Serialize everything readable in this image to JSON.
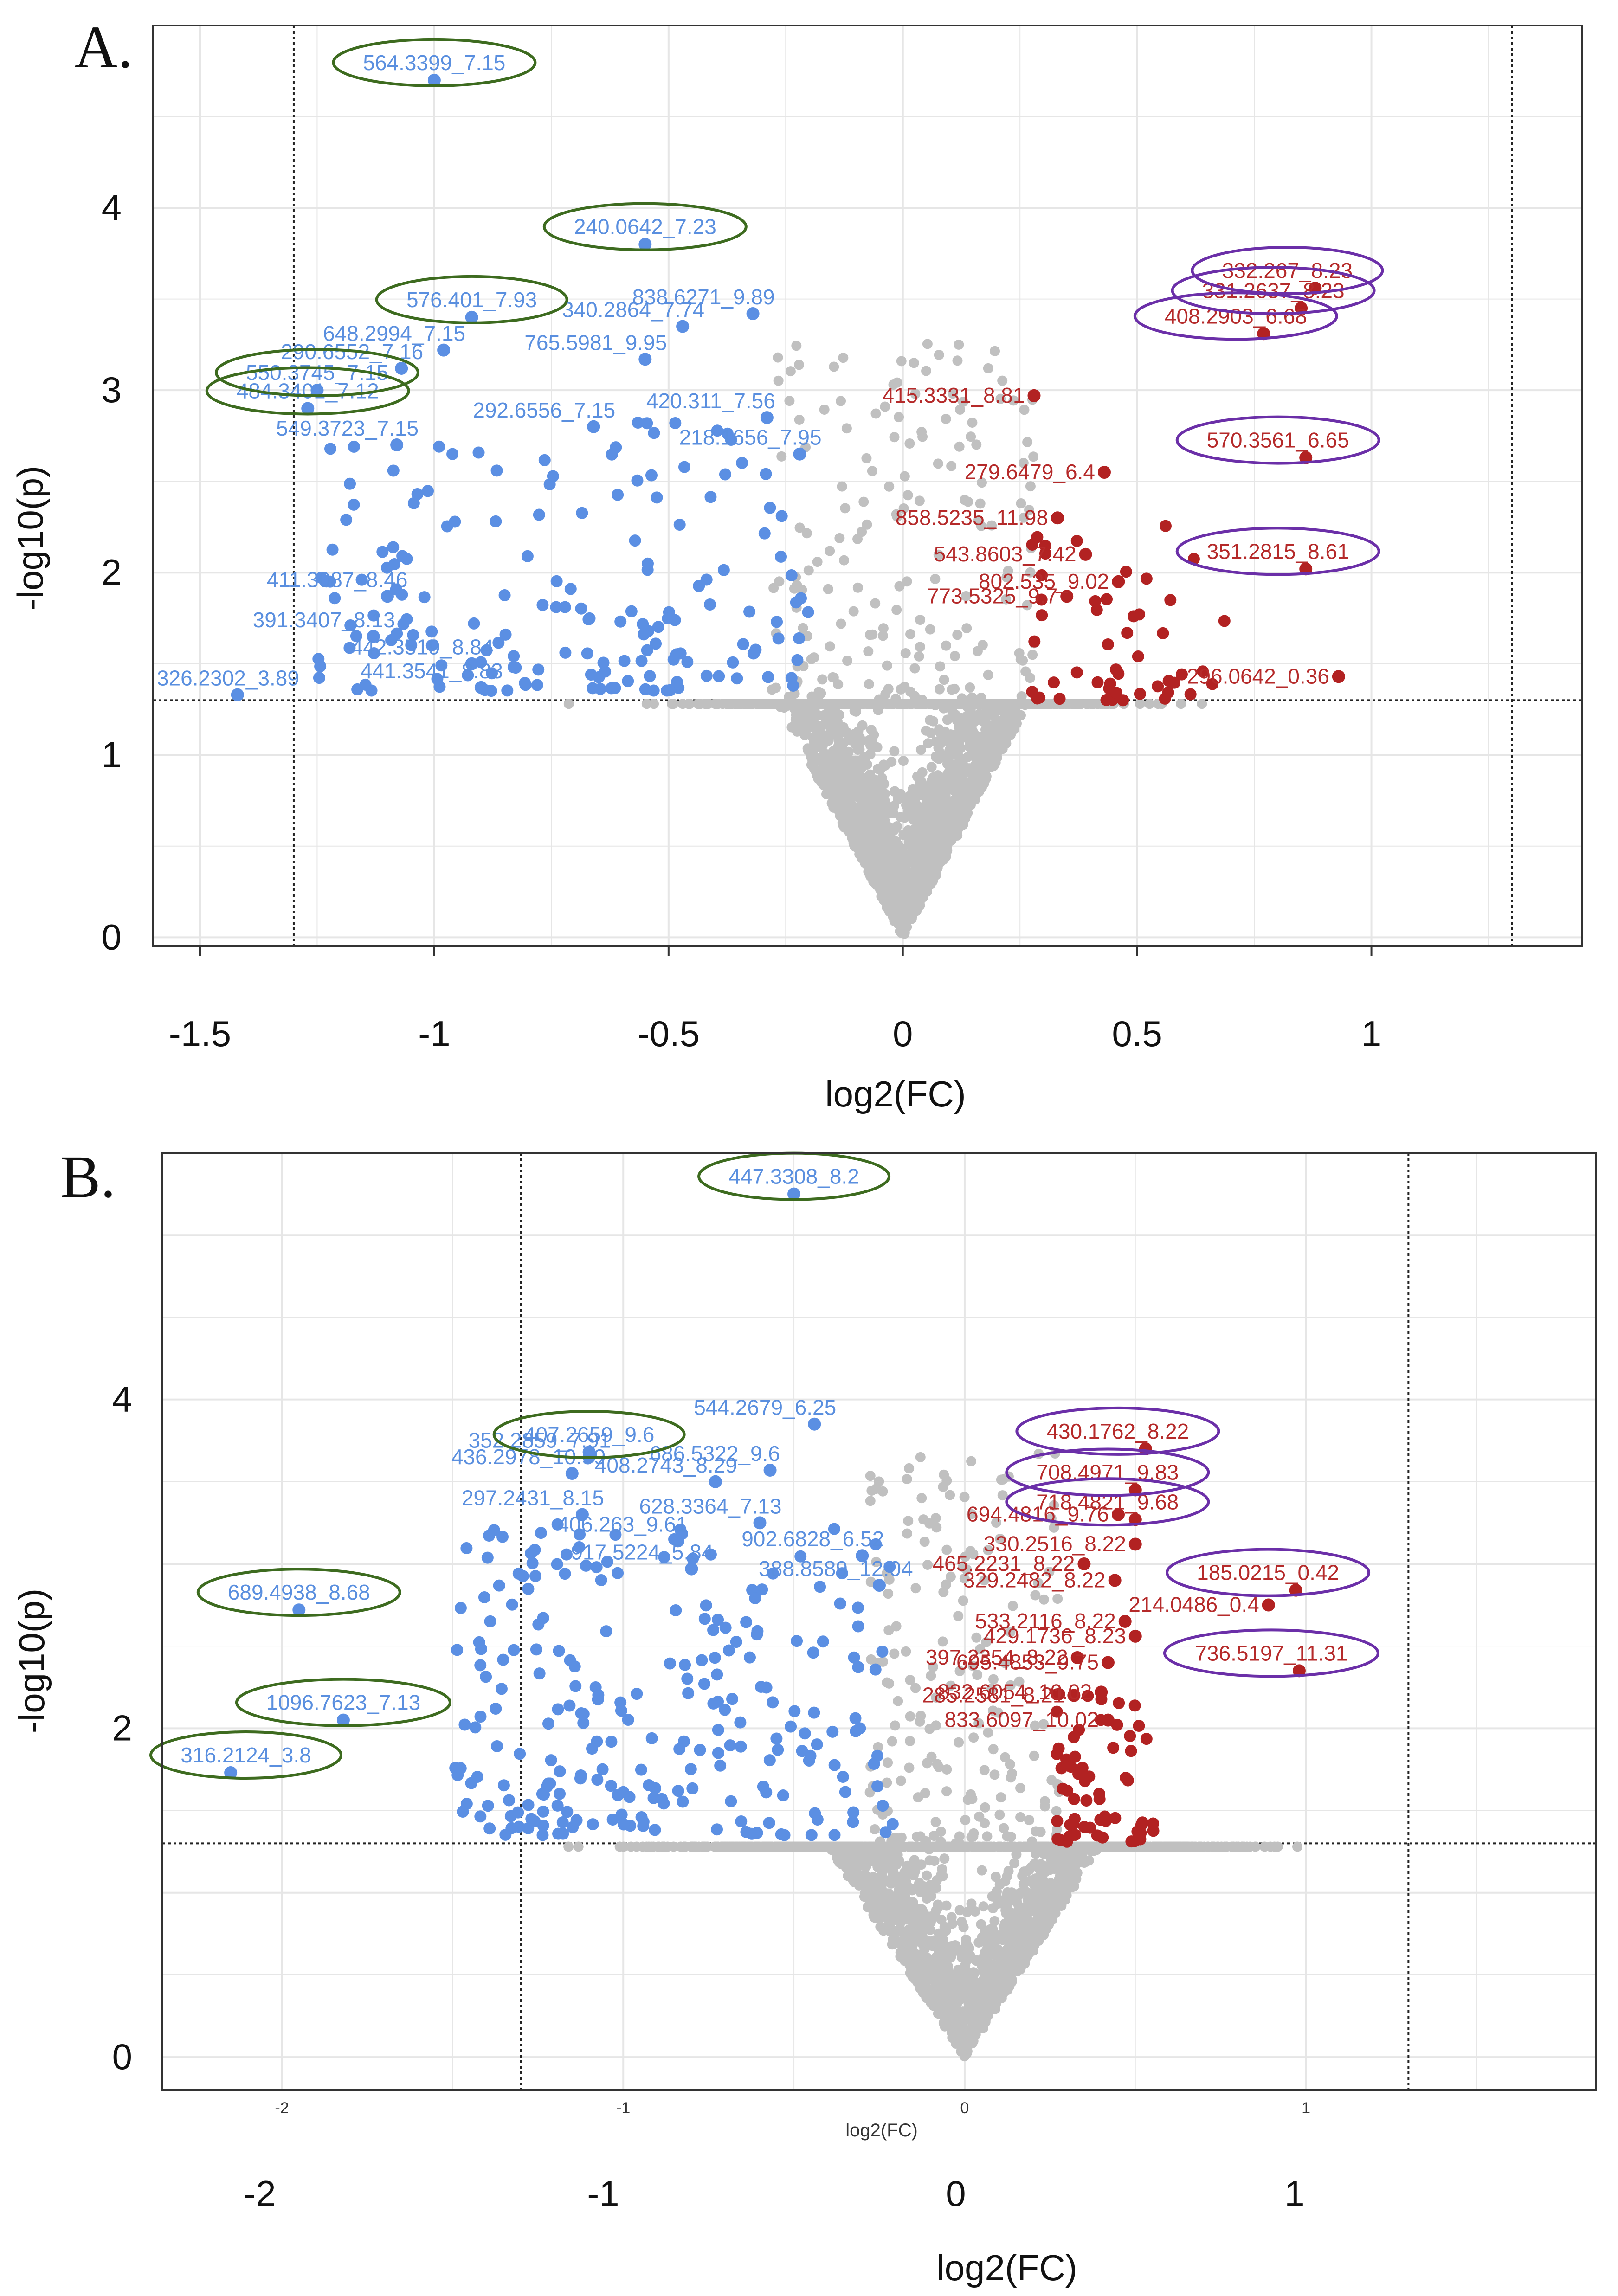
{
  "colors": {
    "down": "#5b8fe3",
    "up": "#b22222",
    "ns": "#c0c0c0",
    "ellipse_green": "#3d6b1f",
    "ellipse_purple": "#6b2fa8",
    "grid": "#e6e6e6"
  },
  "chart_data": [
    {
      "type": "scatter",
      "panel": "A.",
      "xlabel": "log2(FC)",
      "ylabel": "-log10(p)",
      "xlim": [
        -1.6,
        1.45
      ],
      "ylim": [
        -0.05,
        5.0
      ],
      "x_ticks": [
        -1.5,
        -1,
        -0.5,
        0,
        0.5,
        1
      ],
      "x_tick_labels": [
        "-1.5",
        "-1",
        "-0.5",
        "0",
        "0.5",
        "1"
      ],
      "y_ticks": [
        0,
        1,
        2,
        3,
        4
      ],
      "y_tick_labels": [
        "0",
        "1",
        "2",
        "3",
        "4"
      ],
      "thresholds": {
        "fc_low": -1.3,
        "fc_high": 1.3,
        "p": 1.3
      },
      "grid": true,
      "labels": [
        {
          "text": "564.3399_7.15",
          "x": -1.0,
          "y": 4.7,
          "group": "down",
          "circle": "green"
        },
        {
          "text": "240.0642_7.23",
          "x": -0.55,
          "y": 3.8,
          "group": "down",
          "circle": "green"
        },
        {
          "text": "576.401_7.93",
          "x": -0.92,
          "y": 3.4,
          "group": "down",
          "circle": "green"
        },
        {
          "text": "340.2864_7.74",
          "x": -0.47,
          "y": 3.35,
          "group": "down"
        },
        {
          "text": "838.6271_9.89",
          "x": -0.32,
          "y": 3.42,
          "group": "down"
        },
        {
          "text": "648.2994_7.15",
          "x": -0.98,
          "y": 3.22,
          "group": "down"
        },
        {
          "text": "765.5981_9.95",
          "x": -0.55,
          "y": 3.17,
          "group": "down"
        },
        {
          "text": "550.3745_7.15",
          "x": -1.25,
          "y": 3.0,
          "group": "down",
          "circle": "green"
        },
        {
          "text": "290.6552_7.16",
          "x": -1.07,
          "y": 3.12,
          "group": "down"
        },
        {
          "text": "420.311_7.56",
          "x": -0.29,
          "y": 2.85,
          "group": "down"
        },
        {
          "text": "484.3401_7.12",
          "x": -1.27,
          "y": 2.9,
          "group": "down",
          "circle": "green"
        },
        {
          "text": "549.3723_7.15",
          "x": -1.08,
          "y": 2.7,
          "group": "down"
        },
        {
          "text": "292.6556_7.15",
          "x": -0.66,
          "y": 2.8,
          "group": "down"
        },
        {
          "text": "218.1656_7.95",
          "x": -0.22,
          "y": 2.65,
          "group": "down"
        },
        {
          "text": "411.3087_8.46",
          "x": -1.1,
          "y": 1.87,
          "group": "down"
        },
        {
          "text": "391.3407_8.13",
          "x": -1.13,
          "y": 1.65,
          "group": "down"
        },
        {
          "text": "442.3519_8.84",
          "x": -0.92,
          "y": 1.5,
          "group": "down"
        },
        {
          "text": "441.3541_8.83",
          "x": -0.9,
          "y": 1.37,
          "group": "down"
        },
        {
          "text": "326.2302_3.89",
          "x": -1.42,
          "y": 1.33,
          "group": "down"
        },
        {
          "text": "332.267_8.23",
          "x": 0.88,
          "y": 3.56,
          "group": "up",
          "circle": "purple"
        },
        {
          "text": "331.2637_8.23",
          "x": 0.85,
          "y": 3.45,
          "group": "up",
          "circle": "purple"
        },
        {
          "text": "408.2903_6.68",
          "x": 0.77,
          "y": 3.31,
          "group": "up",
          "circle": "purple"
        },
        {
          "text": "415.3331_8.81",
          "x": 0.28,
          "y": 2.97,
          "group": "up"
        },
        {
          "text": "279.6479_6.4",
          "x": 0.43,
          "y": 2.55,
          "group": "up"
        },
        {
          "text": "570.3561_6.65",
          "x": 0.86,
          "y": 2.63,
          "group": "up",
          "circle": "purple"
        },
        {
          "text": "858.5235_11.98",
          "x": 0.33,
          "y": 2.3,
          "group": "up"
        },
        {
          "text": "543.8603_7.42",
          "x": 0.39,
          "y": 2.1,
          "group": "up"
        },
        {
          "text": "351.2815_8.61",
          "x": 0.86,
          "y": 2.02,
          "group": "up",
          "circle": "purple"
        },
        {
          "text": "773.5325_9.7",
          "x": 0.35,
          "y": 1.87,
          "group": "up"
        },
        {
          "text": "802.535_9.02",
          "x": 0.46,
          "y": 1.95,
          "group": "up"
        },
        {
          "text": "296.0642_0.36",
          "x": 0.93,
          "y": 1.43,
          "group": "up"
        }
      ]
    },
    {
      "type": "scatter",
      "panel": "B.",
      "xlabel": "log2(FC)",
      "ylabel": "-log10(p)",
      "xlim": [
        -2.35,
        1.85
      ],
      "ylim": [
        -0.2,
        5.5
      ],
      "x_ticks": [
        -2,
        -1,
        0,
        1
      ],
      "x_tick_labels": [
        "-2",
        "-1",
        "0",
        "1"
      ],
      "y_ticks": [
        0,
        2,
        4
      ],
      "y_tick_labels": [
        "0",
        "2",
        "4"
      ],
      "thresholds": {
        "fc_low": -1.3,
        "fc_high": 1.3,
        "p": 1.3
      },
      "grid": true,
      "labels": [
        {
          "text": "447.3308_8.2",
          "x": -0.5,
          "y": 5.25,
          "group": "down",
          "circle": "green"
        },
        {
          "text": "544.2679_6.25",
          "x": -0.44,
          "y": 3.85,
          "group": "down"
        },
        {
          "text": "407.2659_9.6",
          "x": -1.1,
          "y": 3.68,
          "group": "down",
          "circle": "green"
        },
        {
          "text": "352.2859_7.91",
          "x": -1.1,
          "y": 3.65,
          "group": "down"
        },
        {
          "text": "436.2978_10.59",
          "x": -1.15,
          "y": 3.55,
          "group": "down"
        },
        {
          "text": "686.5322_9.6",
          "x": -0.57,
          "y": 3.57,
          "group": "down"
        },
        {
          "text": "408.2743_8.29",
          "x": -0.73,
          "y": 3.5,
          "group": "down"
        },
        {
          "text": "297.2431_8.15",
          "x": -1.12,
          "y": 3.3,
          "group": "down"
        },
        {
          "text": "628.3364_7.13",
          "x": -0.6,
          "y": 3.25,
          "group": "down"
        },
        {
          "text": "406.263_9.61",
          "x": -0.84,
          "y": 3.14,
          "group": "down"
        },
        {
          "text": "902.6828_6.52",
          "x": -0.3,
          "y": 3.05,
          "group": "down"
        },
        {
          "text": "917.5224_5.84",
          "x": -0.8,
          "y": 2.97,
          "group": "down"
        },
        {
          "text": "388.8589_12.04",
          "x": -0.25,
          "y": 2.87,
          "group": "down"
        },
        {
          "text": "689.4938_8.68",
          "x": -1.95,
          "y": 2.72,
          "group": "down",
          "circle": "green"
        },
        {
          "text": "1096.7623_7.13",
          "x": -1.82,
          "y": 2.05,
          "group": "down",
          "circle": "green"
        },
        {
          "text": "316.2124_3.8",
          "x": -2.15,
          "y": 1.73,
          "group": "down",
          "circle": "green"
        },
        {
          "text": "430.1762_8.22",
          "x": 0.53,
          "y": 3.7,
          "group": "up",
          "circle": "purple"
        },
        {
          "text": "708.4971_9.83",
          "x": 0.5,
          "y": 3.45,
          "group": "up",
          "circle": "purple"
        },
        {
          "text": "694.4816_9.76",
          "x": 0.45,
          "y": 3.3,
          "group": "up"
        },
        {
          "text": "718.4821_9.68",
          "x": 0.5,
          "y": 3.27,
          "group": "up",
          "circle": "purple"
        },
        {
          "text": "465.2231_8.22",
          "x": 0.35,
          "y": 3.0,
          "group": "up"
        },
        {
          "text": "330.2516_8.22",
          "x": 0.5,
          "y": 3.12,
          "group": "up"
        },
        {
          "text": "329.2482_8.22",
          "x": 0.44,
          "y": 2.9,
          "group": "up"
        },
        {
          "text": "185.0215_0.42",
          "x": 0.97,
          "y": 2.84,
          "group": "up",
          "circle": "purple"
        },
        {
          "text": "214.0486_0.4",
          "x": 0.89,
          "y": 2.75,
          "group": "up"
        },
        {
          "text": "533.2116_8.22",
          "x": 0.47,
          "y": 2.65,
          "group": "up"
        },
        {
          "text": "429.1736_8.23",
          "x": 0.5,
          "y": 2.56,
          "group": "up"
        },
        {
          "text": "736.5197_11.31",
          "x": 0.98,
          "y": 2.35,
          "group": "up",
          "circle": "purple"
        },
        {
          "text": "397.2354_8.22",
          "x": 0.33,
          "y": 2.43,
          "group": "up"
        },
        {
          "text": "695.4853_9.75",
          "x": 0.42,
          "y": 2.4,
          "group": "up"
        },
        {
          "text": "285.2581_8.21",
          "x": 0.32,
          "y": 2.2,
          "group": "up"
        },
        {
          "text": "832.6054_10.02",
          "x": 0.4,
          "y": 2.22,
          "group": "up"
        },
        {
          "text": "833.6097_10.02",
          "x": 0.42,
          "y": 2.05,
          "group": "up"
        }
      ]
    }
  ]
}
